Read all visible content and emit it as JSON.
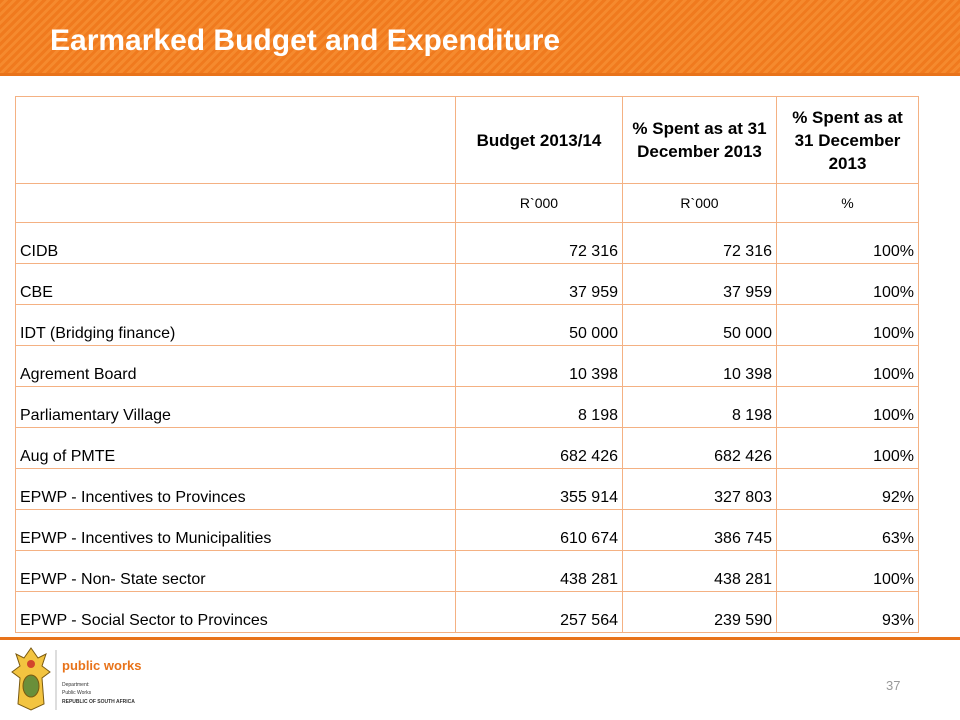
{
  "header": {
    "title": "Earmarked Budget and Expenditure"
  },
  "table": {
    "header": [
      "",
      "Budget 2013/14",
      "% Spent as at 31 December 2013",
      "% Spent as at 31 December 2013"
    ],
    "units": [
      "",
      "R`000",
      "R`000",
      "%"
    ],
    "rows": [
      [
        "CIDB",
        "72 316",
        "72 316",
        "100%"
      ],
      [
        "CBE",
        "37 959",
        "37 959",
        "100%"
      ],
      [
        "IDT (Bridging finance)",
        "50 000",
        "50 000",
        "100%"
      ],
      [
        "Agrement Board",
        "10 398",
        "10 398",
        "100%"
      ],
      [
        "Parliamentary Village",
        "8 198",
        "8 198",
        "100%"
      ],
      [
        "Aug of PMTE",
        "682 426",
        "682 426",
        "100%"
      ],
      [
        "EPWP - Incentives to Provinces",
        "355 914",
        "327 803",
        "92%"
      ],
      [
        "EPWP - Incentives to Municipalities",
        "610 674",
        "386 745",
        "63%"
      ],
      [
        "EPWP - Non- State sector",
        "438 281",
        "438 281",
        "100%"
      ],
      [
        "EPWP - Social Sector to Provinces",
        "257 564",
        "239 590",
        "93%"
      ]
    ]
  },
  "footer": {
    "logo": {
      "name": "public works",
      "lines": [
        "Department:",
        "Public Works",
        "REPUBLIC OF SOUTH AFRICA"
      ]
    },
    "page_number": "37"
  }
}
